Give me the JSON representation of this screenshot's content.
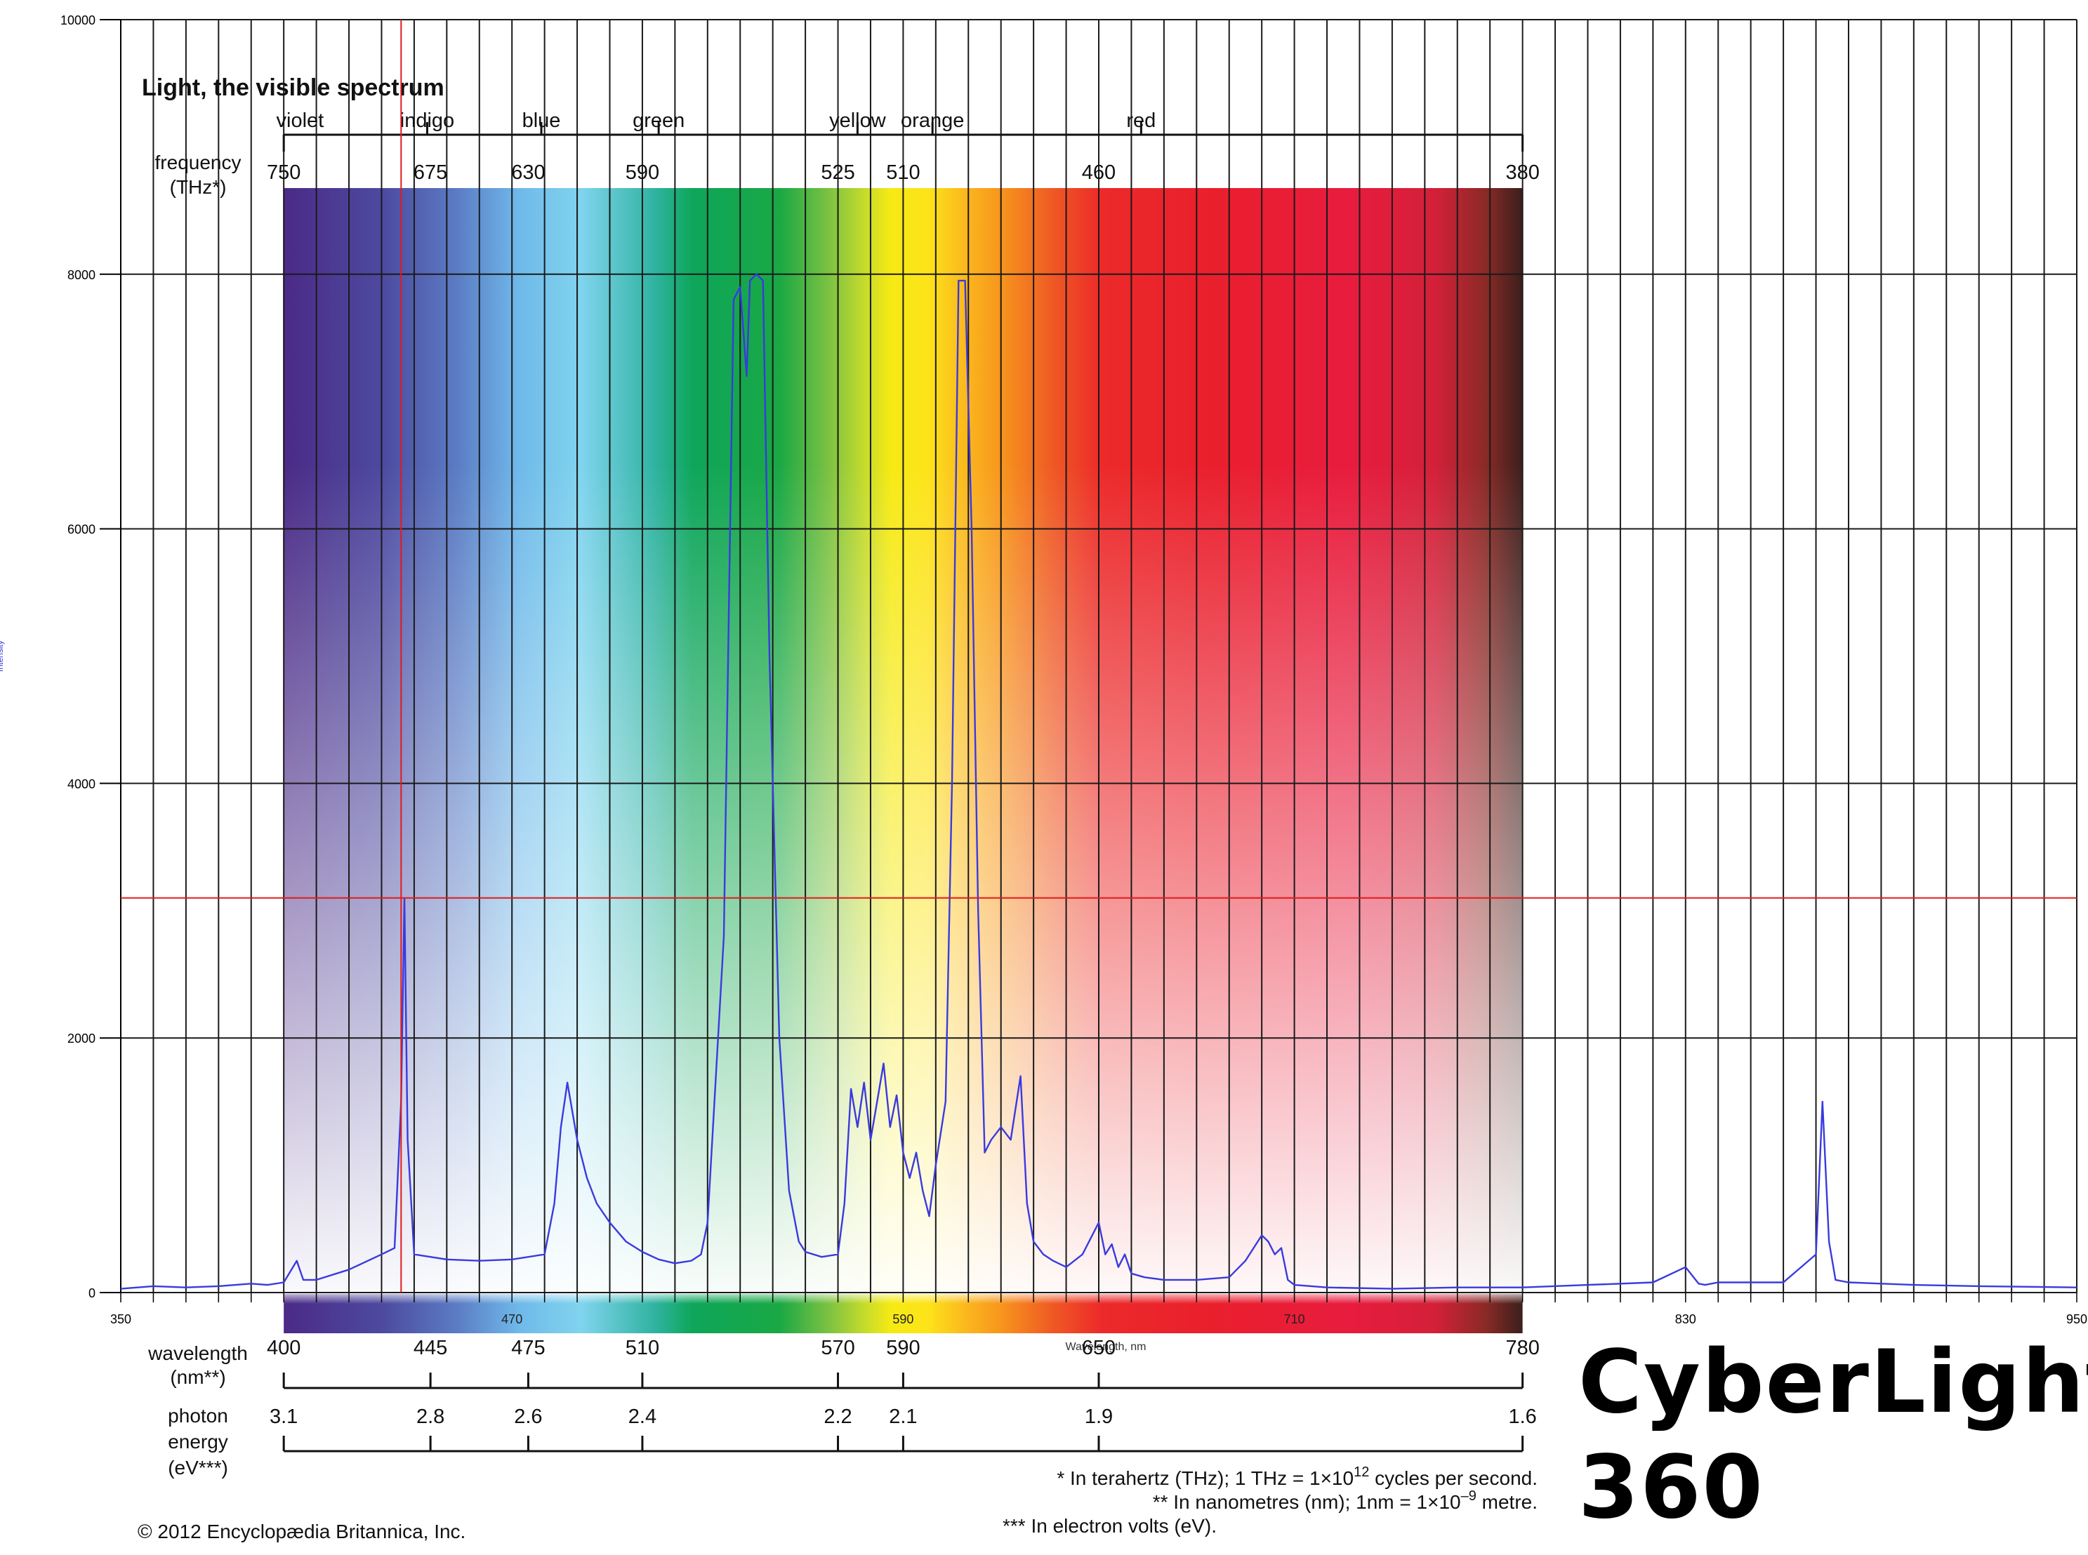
{
  "overlay": {
    "title": "Light, the visible spectrum",
    "color_names": [
      {
        "name": "violet",
        "wl": 405
      },
      {
        "name": "indigo",
        "wl": 444
      },
      {
        "name": "blue",
        "wl": 479
      },
      {
        "name": "green",
        "wl": 515
      },
      {
        "name": "yellow",
        "wl": 576
      },
      {
        "name": "orange",
        "wl": 599
      },
      {
        "name": "red",
        "wl": 663
      }
    ],
    "color_tick_wl": [
      444,
      479,
      515,
      576,
      599,
      663
    ],
    "frequency_label_1": "frequency",
    "frequency_label_2": "(THz*)",
    "frequency_ticks": [
      {
        "label": "750",
        "wl": 400
      },
      {
        "label": "675",
        "wl": 445
      },
      {
        "label": "630",
        "wl": 475
      },
      {
        "label": "590",
        "wl": 510
      },
      {
        "label": "525",
        "wl": 570
      },
      {
        "label": "510",
        "wl": 590
      },
      {
        "label": "460",
        "wl": 650
      },
      {
        "label": "380",
        "wl": 780
      }
    ],
    "wavelength_label_1": "wavelength",
    "wavelength_label_2": "(nm**)",
    "wavelength_ticks": [
      {
        "label": "400",
        "wl": 400
      },
      {
        "label": "445",
        "wl": 445
      },
      {
        "label": "475",
        "wl": 475
      },
      {
        "label": "510",
        "wl": 510
      },
      {
        "label": "570",
        "wl": 570
      },
      {
        "label": "590",
        "wl": 590
      },
      {
        "label": "650",
        "wl": 650
      },
      {
        "label": "780",
        "wl": 780
      }
    ],
    "energy_label_1": "photon",
    "energy_label_2": "energy",
    "energy_label_3": "(eV***)",
    "energy_ticks": [
      {
        "label": "3.1",
        "wl": 400
      },
      {
        "label": "2.8",
        "wl": 445
      },
      {
        "label": "2.6",
        "wl": 475
      },
      {
        "label": "2.4",
        "wl": 510
      },
      {
        "label": "2.2",
        "wl": 570
      },
      {
        "label": "2.1",
        "wl": 590
      },
      {
        "label": "1.9",
        "wl": 650
      },
      {
        "label": "1.6",
        "wl": 780
      }
    ],
    "footnote_1": "* In terahertz (THz); 1 THz = 1×10",
    "footnote_1_sup": "12",
    "footnote_1_end": " cycles per second.",
    "footnote_2": "** In nanometres (nm); 1nm = 1×10",
    "footnote_2_sup": "–9",
    "footnote_2_end": " metre.",
    "footnote_3": "*** In electron volts (eV).",
    "copyright": "© 2012 Encyclopædia Britannica, Inc."
  },
  "brand": {
    "line_1": "CyberLight",
    "line_2": "360"
  },
  "chart_data": {
    "type": "line",
    "xlabel": "Wavelength, nm",
    "ylabel": "Intensity",
    "xlim": [
      350,
      950
    ],
    "ylim": [
      0,
      10000
    ],
    "y_ticks": [
      "0",
      "2000",
      "4000",
      "6000",
      "8000",
      "10000"
    ],
    "x_ticks": [
      "350",
      "470",
      "590",
      "710",
      "830",
      "950"
    ],
    "grid": true,
    "crosshair": {
      "x": 436,
      "y": 3100
    },
    "series": [
      {
        "color": "#3a3adf",
        "x": [
          350,
          360,
          370,
          380,
          390,
          395,
          400,
          404,
          406,
          410,
          420,
          430,
          434,
          436,
          437,
          438,
          440,
          445,
          450,
          460,
          470,
          480,
          483,
          485,
          487,
          490,
          493,
          496,
          500,
          505,
          510,
          515,
          520,
          525,
          528,
          530,
          535,
          538,
          540,
          542,
          543,
          545,
          547,
          549,
          552,
          555,
          558,
          560,
          565,
          570,
          572,
          574,
          576,
          578,
          580,
          582,
          584,
          586,
          588,
          590,
          592,
          594,
          596,
          598,
          600,
          603,
          605,
          607,
          609,
          611,
          613,
          615,
          617,
          620,
          623,
          626,
          628,
          630,
          633,
          636,
          640,
          645,
          650,
          652,
          654,
          656,
          658,
          660,
          664,
          670,
          680,
          690,
          695,
          700,
          702,
          704,
          706,
          708,
          710,
          720,
          740,
          760,
          780,
          800,
          820,
          830,
          834,
          836,
          840,
          860,
          870,
          872,
          874,
          876,
          880,
          900,
          920,
          950
        ],
        "y": [
          30,
          50,
          40,
          50,
          70,
          60,
          80,
          250,
          100,
          100,
          180,
          300,
          350,
          1500,
          3100,
          1200,
          300,
          280,
          260,
          250,
          260,
          300,
          700,
          1300,
          1650,
          1200,
          900,
          700,
          550,
          400,
          320,
          260,
          230,
          250,
          300,
          550,
          2800,
          7800,
          7900,
          7200,
          7950,
          8000,
          7950,
          5000,
          2000,
          800,
          400,
          320,
          280,
          300,
          700,
          1600,
          1300,
          1650,
          1200,
          1500,
          1800,
          1300,
          1550,
          1100,
          900,
          1100,
          800,
          600,
          1000,
          1500,
          4000,
          7950,
          7950,
          6000,
          3000,
          1100,
          1200,
          1300,
          1200,
          1700,
          700,
          400,
          300,
          250,
          200,
          300,
          550,
          300,
          380,
          200,
          300,
          150,
          120,
          100,
          100,
          120,
          250,
          450,
          400,
          300,
          350,
          100,
          60,
          40,
          30,
          40,
          40,
          60,
          80,
          200,
          70,
          60,
          80,
          80,
          300,
          1500,
          400,
          100,
          80,
          60,
          50,
          40
        ]
      }
    ]
  }
}
